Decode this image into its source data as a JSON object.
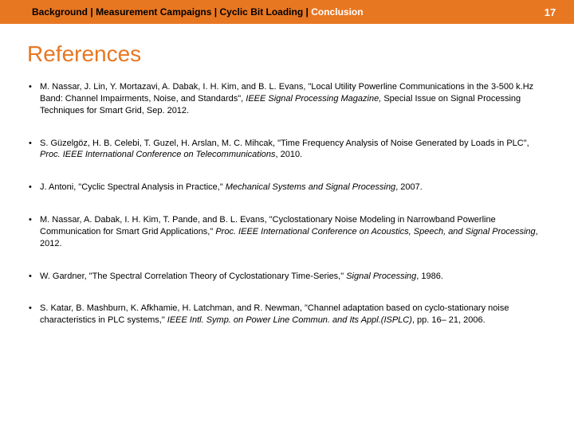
{
  "header": {
    "breadcrumb": {
      "items": [
        "Background",
        "Measurement Campaigns",
        "Cyclic Bit Loading"
      ],
      "current": "Conclusion",
      "separator": " | "
    },
    "page_number": "17",
    "bar_color": "#e87722",
    "current_color": "#ffffff"
  },
  "title": {
    "text": "References",
    "color": "#e87722",
    "fontsize": 28
  },
  "references": [
    {
      "pre": "M. Nassar, J. Lin, Y. Mortazavi, A. Dabak, I. H. Kim, and B. L. Evans, \"Local Utility Powerline Communications in the 3-500 k.Hz Band: Channel Impairments, Noise, and Standards\", ",
      "ital": "IEEE Signal Processing Magazine,",
      "post": " Special Issue on Signal Processing Techniques for Smart Grid, Sep. 2012."
    },
    {
      "pre": "S. Güzelgöz, H. B. Celebi, T. Guzel, H. Arslan, M. C. Mihcak, \"Time Frequency Analysis of Noise Generated by Loads in PLC\", ",
      "ital": "Proc. IEEE International Conference on Telecommunications",
      "post": ", 2010."
    },
    {
      "pre": "J. Antoni, \"Cyclic Spectral Analysis in Practice,\" ",
      "ital": "Mechanical Systems and Signal Processing",
      "post": ", 2007."
    },
    {
      "pre": "M. Nassar, A. Dabak, I. H. Kim, T. Pande, and B. L. Evans, \"Cyclostationary Noise Modeling in Narrowband Powerline Communication for Smart Grid Applications,\" ",
      "ital": "Proc. IEEE International Conference on Acoustics, Speech, and Signal Processing",
      "post": ", 2012."
    },
    {
      "pre": "W. Gardner, \"The Spectral Correlation Theory of Cyclostationary Time-Series,\" ",
      "ital": "Signal Processing",
      "post": ", 1986."
    },
    {
      "pre": "S. Katar, B. Mashburn, K. Afkhamie, H. Latchman, and R. Newman, \"Channel adaptation based on cyclo-stationary noise characteristics in PLC systems,\" ",
      "ital": "IEEE Intl. Symp. on Power Line Commun. and Its Appl.(ISPLC)",
      "post": ", pp. 16– 21, 2006."
    }
  ]
}
